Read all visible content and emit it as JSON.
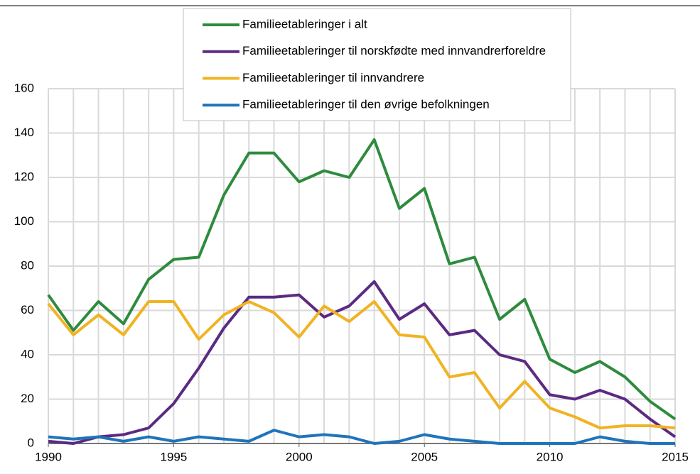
{
  "chart_data": {
    "type": "line",
    "x": [
      1990,
      1991,
      1992,
      1993,
      1994,
      1995,
      1996,
      1997,
      1998,
      1999,
      2000,
      2001,
      2002,
      2003,
      2004,
      2005,
      2006,
      2007,
      2008,
      2009,
      2010,
      2011,
      2012,
      2013,
      2014,
      2015
    ],
    "xlim": [
      1990,
      2015
    ],
    "xticks": [
      1990,
      1995,
      2000,
      2005,
      2010,
      2015
    ],
    "ylim": [
      0,
      160
    ],
    "yticks": [
      0,
      20,
      40,
      60,
      80,
      100,
      120,
      140,
      160
    ],
    "grid": true,
    "legend": "top",
    "series": [
      {
        "name": "Familieetableringer i alt",
        "color": "#2e8b3e",
        "values": [
          67,
          51,
          64,
          54,
          74,
          83,
          84,
          112,
          131,
          131,
          118,
          123,
          120,
          137,
          106,
          115,
          81,
          84,
          56,
          65,
          38,
          32,
          37,
          30,
          19,
          11
        ]
      },
      {
        "name": "Familieetableringer til norskfødte med innvandrerforeldre",
        "color": "#5b2a82",
        "values": [
          1,
          0,
          3,
          4,
          7,
          18,
          34,
          52,
          66,
          66,
          67,
          57,
          62,
          73,
          56,
          63,
          49,
          51,
          40,
          37,
          22,
          20,
          24,
          20,
          11,
          3
        ]
      },
      {
        "name": "Familieetableringer til innvandrere",
        "color": "#f0b323",
        "values": [
          63,
          49,
          58,
          49,
          64,
          64,
          47,
          58,
          64,
          59,
          48,
          62,
          55,
          64,
          49,
          48,
          30,
          32,
          16,
          28,
          16,
          12,
          7,
          8,
          8,
          7
        ]
      },
      {
        "name": "Familieetableringer til den øvrige befolkningen",
        "color": "#1f74bb",
        "values": [
          3,
          2,
          3,
          1,
          3,
          1,
          3,
          2,
          1,
          6,
          3,
          4,
          3,
          0,
          1,
          4,
          2,
          1,
          0,
          0,
          0,
          0,
          3,
          1,
          0,
          0
        ]
      }
    ]
  }
}
